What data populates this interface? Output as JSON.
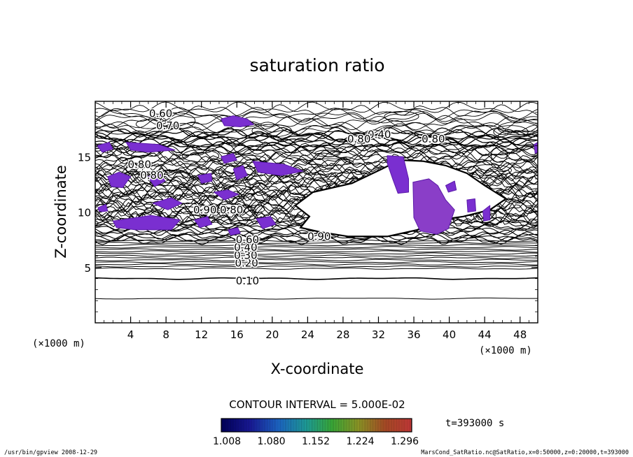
{
  "chart_data": {
    "type": "contour",
    "title": "saturation ratio",
    "xlabel": "X-coordinate",
    "ylabel": "Z-coordinate",
    "x_unit": "(×1000 m)",
    "x_unit_right": "(×1000 m)",
    "xlim": [
      0,
      50
    ],
    "ylim": [
      0,
      20
    ],
    "x_ticks": [
      4,
      8,
      12,
      16,
      20,
      24,
      28,
      32,
      36,
      40,
      44,
      48
    ],
    "y_ticks": [
      5,
      10,
      15
    ],
    "contour_interval_text": "CONTOUR INTERVAL = 5.000E-02",
    "time_text": "t=393000 s",
    "colorbar_labels": [
      "1.008",
      "1.080",
      "1.152",
      "1.224",
      "1.296"
    ],
    "contour_labels": [
      {
        "text": "0.10",
        "x": 17.2,
        "y": 3.8
      },
      {
        "text": "0.20",
        "x": 17.1,
        "y": 5.4
      },
      {
        "text": "0.30",
        "x": 17.0,
        "y": 6.1
      },
      {
        "text": "0.40",
        "x": 17.0,
        "y": 6.8
      },
      {
        "text": "0.60",
        "x": 17.2,
        "y": 7.5
      },
      {
        "text": "0.60",
        "x": 7.4,
        "y": 18.9
      },
      {
        "text": "0.70",
        "x": 8.2,
        "y": 17.8
      },
      {
        "text": "0.40",
        "x": 32.1,
        "y": 17.0
      },
      {
        "text": "0.80",
        "x": 29.8,
        "y": 16.6
      },
      {
        "text": "0.80",
        "x": 38.2,
        "y": 16.6
      },
      {
        "text": "0.80",
        "x": 5.0,
        "y": 14.3
      },
      {
        "text": "0.80",
        "x": 6.4,
        "y": 13.3
      },
      {
        "text": "0.90",
        "x": 12.4,
        "y": 10.2
      },
      {
        "text": "0.80",
        "x": 15.4,
        "y": 10.2
      },
      {
        "text": "0.90",
        "x": 25.3,
        "y": 7.8
      }
    ],
    "supersaturated_regions": [
      [
        [
          14.2,
          18.4
        ],
        [
          15.6,
          18.7
        ],
        [
          17.2,
          18.4
        ],
        [
          17.9,
          17.9
        ],
        [
          16.4,
          17.7
        ],
        [
          14.6,
          17.8
        ]
      ],
      [
        [
          0.2,
          16.0
        ],
        [
          1.6,
          16.3
        ],
        [
          2.0,
          15.7
        ],
        [
          0.8,
          15.4
        ]
      ],
      [
        [
          3.5,
          16.3
        ],
        [
          7.2,
          16.1
        ],
        [
          9.0,
          15.6
        ],
        [
          6.0,
          15.4
        ],
        [
          4.0,
          15.6
        ]
      ],
      [
        [
          14.2,
          15.0
        ],
        [
          15.6,
          15.3
        ],
        [
          16.0,
          14.7
        ],
        [
          14.6,
          14.4
        ]
      ],
      [
        [
          17.8,
          14.6
        ],
        [
          21.4,
          14.3
        ],
        [
          23.5,
          13.7
        ],
        [
          21.0,
          13.3
        ],
        [
          18.4,
          13.6
        ]
      ],
      [
        [
          1.4,
          13.2
        ],
        [
          2.7,
          13.6
        ],
        [
          4.0,
          13.2
        ],
        [
          3.1,
          12.2
        ],
        [
          1.8,
          12.3
        ]
      ],
      [
        [
          5.9,
          13.2
        ],
        [
          7.2,
          13.5
        ],
        [
          7.9,
          12.8
        ],
        [
          6.7,
          12.3
        ]
      ],
      [
        [
          11.6,
          13.3
        ],
        [
          13.1,
          13.5
        ],
        [
          13.2,
          12.8
        ],
        [
          12.0,
          12.6
        ]
      ],
      [
        [
          15.6,
          13.9
        ],
        [
          16.7,
          14.2
        ],
        [
          17.2,
          13.3
        ],
        [
          16.0,
          12.9
        ]
      ],
      [
        [
          13.4,
          11.8
        ],
        [
          15.0,
          12.0
        ],
        [
          16.2,
          11.6
        ],
        [
          14.6,
          11.1
        ]
      ],
      [
        [
          6.5,
          10.8
        ],
        [
          8.6,
          11.3
        ],
        [
          9.8,
          10.8
        ],
        [
          8.2,
          10.2
        ]
      ],
      [
        [
          2.0,
          9.2
        ],
        [
          6.3,
          9.7
        ],
        [
          9.6,
          9.3
        ],
        [
          8.6,
          8.4
        ],
        [
          4.6,
          8.4
        ],
        [
          2.4,
          8.6
        ]
      ],
      [
        [
          11.2,
          9.3
        ],
        [
          12.7,
          9.6
        ],
        [
          13.2,
          8.9
        ],
        [
          11.8,
          8.6
        ]
      ],
      [
        [
          18.2,
          9.4
        ],
        [
          19.8,
          9.6
        ],
        [
          20.4,
          8.9
        ],
        [
          18.9,
          8.5
        ]
      ],
      [
        [
          15.0,
          8.4
        ],
        [
          16.1,
          8.6
        ],
        [
          16.4,
          8.1
        ],
        [
          15.3,
          7.9
        ]
      ],
      [
        [
          33.0,
          15.1
        ],
        [
          34.8,
          15.0
        ],
        [
          35.4,
          13.0
        ],
        [
          35.4,
          11.8
        ],
        [
          34.2,
          11.7
        ],
        [
          33.6,
          13.0
        ],
        [
          33.0,
          14.4
        ]
      ],
      [
        [
          35.9,
          12.7
        ],
        [
          37.7,
          13.0
        ],
        [
          38.7,
          12.4
        ],
        [
          39.6,
          11.1
        ],
        [
          40.6,
          10.2
        ],
        [
          39.9,
          8.5
        ],
        [
          38.6,
          8.0
        ],
        [
          36.7,
          8.3
        ],
        [
          36.0,
          9.5
        ]
      ],
      [
        [
          42.0,
          11.1
        ],
        [
          42.9,
          11.2
        ],
        [
          43.0,
          10.1
        ],
        [
          42.1,
          10.0
        ]
      ],
      [
        [
          43.8,
          10.1
        ],
        [
          44.6,
          10.6
        ],
        [
          44.6,
          9.3
        ],
        [
          43.9,
          9.2
        ]
      ],
      [
        [
          39.6,
          12.4
        ],
        [
          40.6,
          12.8
        ],
        [
          40.8,
          12.0
        ],
        [
          39.9,
          11.8
        ]
      ],
      [
        [
          49.6,
          16.1
        ],
        [
          50.0,
          16.3
        ],
        [
          50.0,
          15.4
        ],
        [
          49.7,
          15.3
        ]
      ],
      [
        [
          0.3,
          10.4
        ],
        [
          1.2,
          10.7
        ],
        [
          1.4,
          10.1
        ],
        [
          0.5,
          10.0
        ]
      ]
    ],
    "grid": false,
    "legend": "colorbar-bottom"
  },
  "footer": {
    "left": "/usr/bin/gpview   2008-12-29",
    "right": "MarsCond_SatRatio.nc@SatRatio,x=0:50000,z=0:20000,t=393000"
  }
}
